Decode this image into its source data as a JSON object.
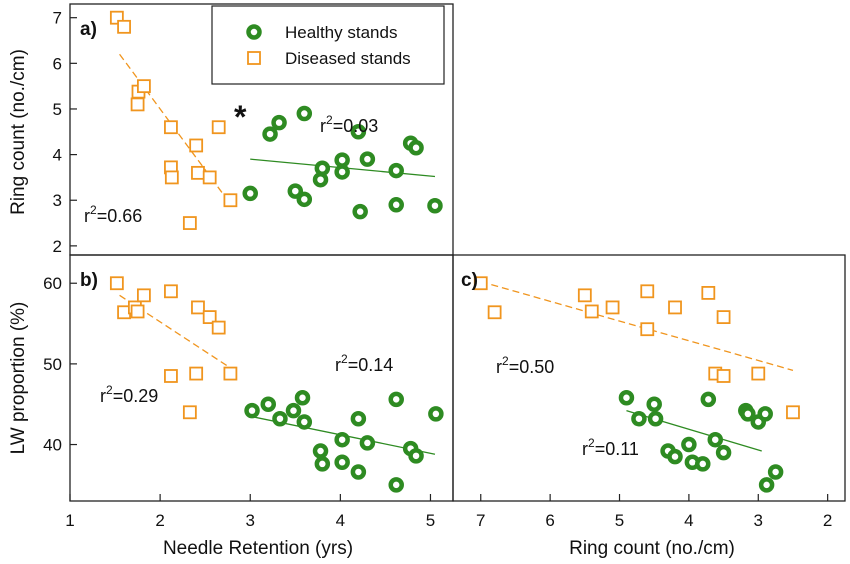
{
  "colors": {
    "healthy": "#2e8b22",
    "diseased": "#f0951e"
  },
  "legend": {
    "healthy_label": "Healthy stands",
    "diseased_label": "Diseased stands"
  },
  "significance_marker": "*",
  "axis_labels": {
    "ring_count_y": "Ring count (no./cm)",
    "lw_y": "LW proportion (%)",
    "needle_x": "Needle Retention (yrs)",
    "ring_x": "Ring count (no./cm)"
  },
  "chart_data": [
    {
      "panel": "a)",
      "type": "scatter",
      "xlim": [
        1,
        5.25
      ],
      "ylim": [
        1.8,
        7.3
      ],
      "yticks": [
        2,
        3,
        4,
        5,
        6,
        7
      ],
      "series": [
        {
          "name": "Healthy stands",
          "marker": "circle",
          "r2": "0.03",
          "trend": [
            [
              3.0,
              3.9
            ],
            [
              5.05,
              3.52
            ]
          ],
          "points": [
            [
              3.0,
              3.15
            ],
            [
              3.22,
              4.45
            ],
            [
              3.32,
              4.7
            ],
            [
              3.5,
              3.2
            ],
            [
              3.6,
              4.9
            ],
            [
              3.6,
              3.02
            ],
            [
              3.78,
              3.45
            ],
            [
              3.8,
              3.7
            ],
            [
              4.02,
              3.88
            ],
            [
              4.02,
              3.62
            ],
            [
              4.2,
              4.5
            ],
            [
              4.22,
              2.75
            ],
            [
              4.3,
              3.9
            ],
            [
              4.62,
              3.65
            ],
            [
              4.62,
              2.9
            ],
            [
              4.78,
              4.25
            ],
            [
              4.84,
              4.15
            ],
            [
              5.05,
              2.88
            ]
          ]
        },
        {
          "name": "Diseased stands",
          "marker": "square",
          "r2": "0.66",
          "trend": [
            [
              1.55,
              6.2
            ],
            [
              2.75,
              3.0
            ]
          ],
          "points": [
            [
              1.52,
              7.0
            ],
            [
              1.6,
              6.8
            ],
            [
              1.75,
              5.1
            ],
            [
              1.76,
              5.38
            ],
            [
              1.82,
              5.5
            ],
            [
              2.12,
              4.6
            ],
            [
              2.12,
              3.72
            ],
            [
              2.13,
              3.5
            ],
            [
              2.33,
              2.5
            ],
            [
              2.4,
              4.2
            ],
            [
              2.42,
              3.6
            ],
            [
              2.55,
              3.5
            ],
            [
              2.65,
              4.6
            ],
            [
              2.78,
              3.0
            ]
          ]
        }
      ]
    },
    {
      "panel": "b)",
      "type": "scatter",
      "xlim": [
        1,
        5.25
      ],
      "ylim": [
        33,
        63.5
      ],
      "xticks": [
        1,
        2,
        3,
        4,
        5
      ],
      "yticks": [
        40,
        50,
        60
      ],
      "series": [
        {
          "name": "Healthy stands",
          "marker": "circle",
          "r2": "0.14",
          "trend": [
            [
              3.0,
              43.5
            ],
            [
              5.05,
              38.8
            ]
          ],
          "points": [
            [
              3.02,
              44.2
            ],
            [
              3.2,
              45.0
            ],
            [
              3.33,
              43.2
            ],
            [
              3.48,
              44.2
            ],
            [
              3.58,
              45.8
            ],
            [
              3.6,
              42.8
            ],
            [
              3.78,
              39.2
            ],
            [
              3.8,
              37.6
            ],
            [
              4.02,
              40.6
            ],
            [
              4.02,
              37.8
            ],
            [
              4.2,
              36.6
            ],
            [
              4.2,
              43.2
            ],
            [
              4.3,
              40.2
            ],
            [
              4.62,
              45.6
            ],
            [
              4.62,
              35.0
            ],
            [
              4.78,
              39.5
            ],
            [
              4.84,
              38.6
            ],
            [
              5.06,
              43.8
            ]
          ]
        },
        {
          "name": "Diseased stands",
          "marker": "square",
          "r2": "0.29",
          "trend": [
            [
              1.55,
              58.5
            ],
            [
              2.78,
              49.5
            ]
          ],
          "points": [
            [
              1.52,
              60.0
            ],
            [
              1.6,
              56.4
            ],
            [
              1.72,
              57.0
            ],
            [
              1.75,
              56.5
            ],
            [
              1.82,
              58.5
            ],
            [
              2.12,
              59.0
            ],
            [
              2.12,
              48.5
            ],
            [
              2.33,
              44.0
            ],
            [
              2.4,
              48.8
            ],
            [
              2.42,
              57.0
            ],
            [
              2.55,
              55.8
            ],
            [
              2.65,
              54.5
            ],
            [
              2.78,
              48.8
            ]
          ]
        }
      ]
    },
    {
      "panel": "c)",
      "type": "scatter",
      "xlim": [
        7.4,
        1.75
      ],
      "ylim": [
        33,
        63.5
      ],
      "xticks": [
        7,
        6,
        5,
        4,
        3,
        2
      ],
      "series": [
        {
          "name": "Healthy stands",
          "marker": "circle",
          "r2": "0.11",
          "trend": [
            [
              4.9,
              44.2
            ],
            [
              2.95,
              39.2
            ]
          ],
          "points": [
            [
              4.9,
              45.8
            ],
            [
              4.72,
              43.2
            ],
            [
              4.5,
              45.0
            ],
            [
              4.48,
              43.2
            ],
            [
              4.3,
              39.2
            ],
            [
              4.2,
              38.5
            ],
            [
              4.0,
              40.0
            ],
            [
              3.95,
              37.8
            ],
            [
              3.8,
              37.6
            ],
            [
              3.72,
              45.6
            ],
            [
              3.62,
              40.6
            ],
            [
              3.5,
              39.0
            ],
            [
              3.18,
              44.2
            ],
            [
              3.15,
              43.8
            ],
            [
              3.0,
              42.8
            ],
            [
              2.9,
              43.8
            ],
            [
              2.88,
              35.0
            ],
            [
              2.75,
              36.6
            ]
          ]
        },
        {
          "name": "Diseased stands",
          "marker": "square",
          "r2": "0.50",
          "trend": [
            [
              7.0,
              60.2
            ],
            [
              2.5,
              49.2
            ]
          ],
          "points": [
            [
              7.0,
              60.0
            ],
            [
              6.8,
              56.4
            ],
            [
              5.5,
              58.5
            ],
            [
              5.4,
              56.5
            ],
            [
              5.1,
              57.0
            ],
            [
              4.6,
              59.0
            ],
            [
              4.6,
              54.3
            ],
            [
              4.2,
              57.0
            ],
            [
              3.72,
              58.8
            ],
            [
              3.62,
              48.8
            ],
            [
              3.5,
              55.8
            ],
            [
              3.5,
              48.5
            ],
            [
              3.0,
              48.8
            ],
            [
              2.5,
              44.0
            ]
          ]
        }
      ]
    }
  ]
}
